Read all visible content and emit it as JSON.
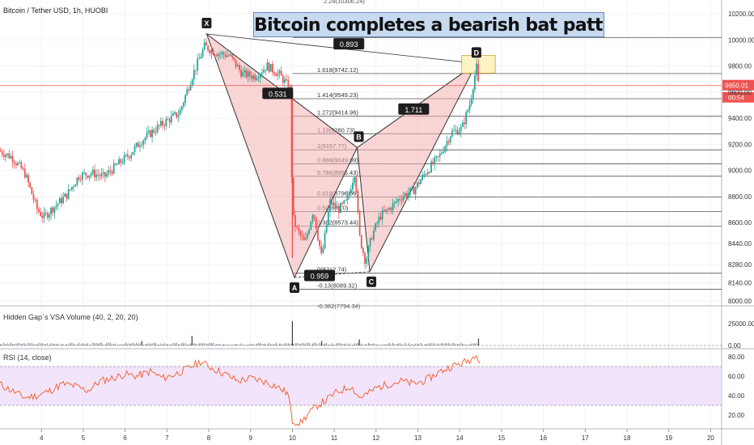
{
  "symbol_title": "Bitcoin / Tether USD, 1h, HUOBI",
  "headline": "Bitcoin completes a bearish bat pattern!",
  "volume_title": "Hidden Gap`s VSA Volume (40, 2, 20, 20)",
  "rsi_title": "RSI (14, close)",
  "current_price": "9650.01",
  "countdown": "00:54",
  "colors": {
    "up": "#26a69a",
    "down": "#ef5350",
    "pattern_fill": "#f4b3b3",
    "rsi_line": "#f05a28",
    "rsi_band": "#ecd8f8"
  },
  "chart_data": [
    {
      "type": "candlestick",
      "title": "Bitcoin / Tether USD, 1h, HUOBI",
      "y_range": [
        7950,
        10350
      ],
      "y_ticks": [
        "10200.00",
        "10000.00",
        "9800.00",
        "9600.00",
        "9400.00",
        "9200.00",
        "9000.00",
        "8800.00",
        "8600.00",
        "8440.00",
        "8280.00",
        "8140.00",
        "8000.00"
      ],
      "x_ticks": [
        "4",
        "5",
        "6",
        "7",
        "8",
        "9",
        "10",
        "11",
        "12",
        "13",
        "14",
        "15",
        "16",
        "17",
        "18",
        "19",
        "20"
      ],
      "x_range": [
        3,
        20.2
      ],
      "pattern": {
        "name": "bearish bat",
        "points": [
          {
            "label": "X",
            "x": 7.95,
            "y": 10045
          },
          {
            "label": "A",
            "x": 10.05,
            "y": 8180
          },
          {
            "label": "B",
            "x": 11.55,
            "y": 9175
          },
          {
            "label": "C",
            "x": 11.85,
            "y": 8225
          },
          {
            "label": "D",
            "x": 14.4,
            "y": 9820
          }
        ],
        "ratios": [
          {
            "label": "0.531",
            "x": 9.65,
            "y": 9590
          },
          {
            "label": "0.959",
            "x": 10.65,
            "y": 8195
          },
          {
            "label": "1.711",
            "x": 12.9,
            "y": 9470
          },
          {
            "label": "0.893",
            "x": 11.35,
            "y": 9970
          }
        ]
      },
      "fib_levels": [
        {
          "label": "1.902(10017.82)",
          "value": 10017.82
        },
        {
          "label": "1.618(9742.12)",
          "value": 9742.12
        },
        {
          "label": "1.414(9549.23)",
          "value": 9549.23
        },
        {
          "label": "1.272(9414.96)",
          "value": 9414.96
        },
        {
          "label": "1.13(9280.73)",
          "value": 9280.73
        },
        {
          "label": "1(9157.77)",
          "value": 9157.77
        },
        {
          "label": "0.886(9049.99)",
          "value": 9049.99
        },
        {
          "label": "0.786(8955.43)",
          "value": 8955.43
        },
        {
          "label": "0.618(8796.56)",
          "value": 8796.56
        },
        {
          "label": "0.5(8685.0)",
          "value": 8685.0
        },
        {
          "label": "0.382(8573.44)",
          "value": 8573.44
        },
        {
          "label": "0(8212.74)",
          "value": 8212.74
        },
        {
          "label": "-0.13(8089.32)",
          "value": 8089.32
        }
      ],
      "current_price": 9650.01,
      "close_path": [
        [
          3.0,
          9150
        ],
        [
          3.3,
          9100
        ],
        [
          3.6,
          8980
        ],
        [
          3.9,
          8700
        ],
        [
          4.05,
          8640
        ],
        [
          4.3,
          8720
        ],
        [
          4.6,
          8810
        ],
        [
          4.9,
          8960
        ],
        [
          5.2,
          8980
        ],
        [
          5.5,
          8950
        ],
        [
          5.8,
          9040
        ],
        [
          6.1,
          9120
        ],
        [
          6.4,
          9230
        ],
        [
          6.7,
          9310
        ],
        [
          7.0,
          9380
        ],
        [
          7.3,
          9440
        ],
        [
          7.6,
          9720
        ],
        [
          7.9,
          9950
        ],
        [
          8.2,
          9900
        ],
        [
          8.5,
          9880
        ],
        [
          8.8,
          9740
        ],
        [
          9.1,
          9720
        ],
        [
          9.4,
          9800
        ],
        [
          9.7,
          9730
        ],
        [
          9.95,
          9620
        ],
        [
          10.0,
          8650
        ],
        [
          10.1,
          8550
        ],
        [
          10.3,
          8440
        ],
        [
          10.5,
          8700
        ],
        [
          10.7,
          8330
        ],
        [
          10.9,
          8760
        ],
        [
          11.1,
          8700
        ],
        [
          11.3,
          8760
        ],
        [
          11.5,
          9000
        ],
        [
          11.6,
          8500
        ],
        [
          11.75,
          8300
        ],
        [
          11.9,
          8500
        ],
        [
          12.1,
          8650
        ],
        [
          12.3,
          8700
        ],
        [
          12.6,
          8800
        ],
        [
          12.9,
          8850
        ],
        [
          13.2,
          8990
        ],
        [
          13.5,
          9100
        ],
        [
          13.8,
          9290
        ],
        [
          14.05,
          9320
        ],
        [
          14.25,
          9520
        ],
        [
          14.4,
          9800
        ],
        [
          14.45,
          9650
        ]
      ],
      "grid": true
    },
    {
      "type": "bar",
      "title": "Hidden Gap`s VSA Volume (40, 2, 20, 20)",
      "y_ticks": [
        "25000.00",
        "0.00"
      ],
      "y_range": [
        0,
        30000
      ],
      "spikes": [
        {
          "x": 10.0,
          "value": 28000
        },
        {
          "x": 7.6,
          "value": 11000
        },
        {
          "x": 14.45,
          "value": 8000
        },
        {
          "x": 11.6,
          "value": 7000
        },
        {
          "x": 6.4,
          "value": 5000
        },
        {
          "x": 10.7,
          "value": 5200
        }
      ]
    },
    {
      "type": "line",
      "title": "RSI (14, close)",
      "y_ticks": [
        "80.00",
        "60.00",
        "40.00",
        "20.00"
      ],
      "y_range": [
        10,
        88
      ],
      "band": [
        30,
        70
      ],
      "series": [
        {
          "values_xy": [
            [
              3.0,
              52
            ],
            [
              3.3,
              45
            ],
            [
              3.6,
              38
            ],
            [
              3.9,
              40
            ],
            [
              4.2,
              45
            ],
            [
              4.5,
              52
            ],
            [
              4.8,
              50
            ],
            [
              5.1,
              45
            ],
            [
              5.4,
              55
            ],
            [
              5.7,
              58
            ],
            [
              6.0,
              62
            ],
            [
              6.3,
              60
            ],
            [
              6.6,
              65
            ],
            [
              6.9,
              58
            ],
            [
              7.2,
              62
            ],
            [
              7.5,
              68
            ],
            [
              7.8,
              75
            ],
            [
              8.1,
              68
            ],
            [
              8.4,
              62
            ],
            [
              8.7,
              55
            ],
            [
              9.0,
              58
            ],
            [
              9.3,
              55
            ],
            [
              9.6,
              50
            ],
            [
              9.9,
              42
            ],
            [
              10.0,
              14
            ],
            [
              10.2,
              12
            ],
            [
              10.4,
              22
            ],
            [
              10.6,
              30
            ],
            [
              10.8,
              35
            ],
            [
              11.0,
              42
            ],
            [
              11.2,
              46
            ],
            [
              11.4,
              50
            ],
            [
              11.6,
              38
            ],
            [
              11.8,
              42
            ],
            [
              12.0,
              48
            ],
            [
              12.3,
              52
            ],
            [
              12.6,
              55
            ],
            [
              12.9,
              52
            ],
            [
              13.2,
              56
            ],
            [
              13.5,
              64
            ],
            [
              13.8,
              70
            ],
            [
              14.1,
              74
            ],
            [
              14.3,
              78
            ],
            [
              14.4,
              85
            ],
            [
              14.5,
              72
            ]
          ]
        }
      ]
    }
  ]
}
